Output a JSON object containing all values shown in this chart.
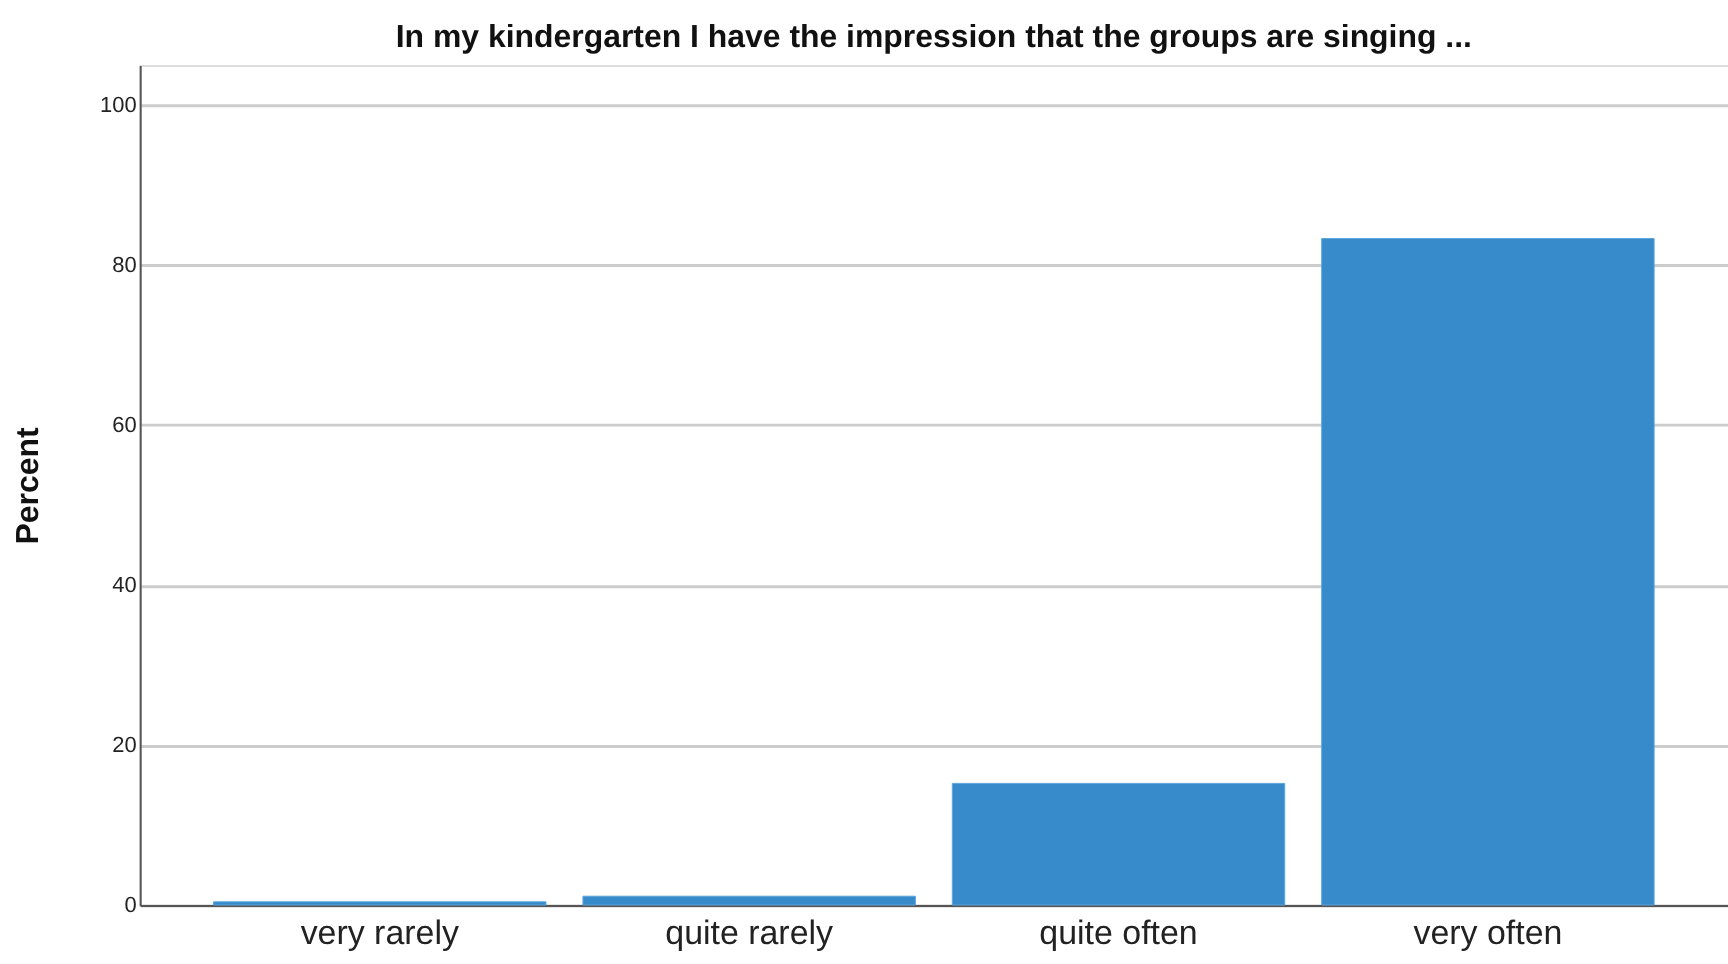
{
  "chart_data": {
    "type": "bar",
    "title": "In my kindergarten I have the impression that the groups are singing ...",
    "ylabel": "Percent",
    "categories": [
      "very rarely",
      "quite rarely",
      "quite often",
      "very often"
    ],
    "values": [
      0.4,
      1.1,
      15.2,
      83.3
    ],
    "color": "#378bcb",
    "ylim": [
      0,
      105
    ],
    "yticks": [
      0,
      20,
      40,
      60,
      80,
      100
    ],
    "grid": "y"
  }
}
